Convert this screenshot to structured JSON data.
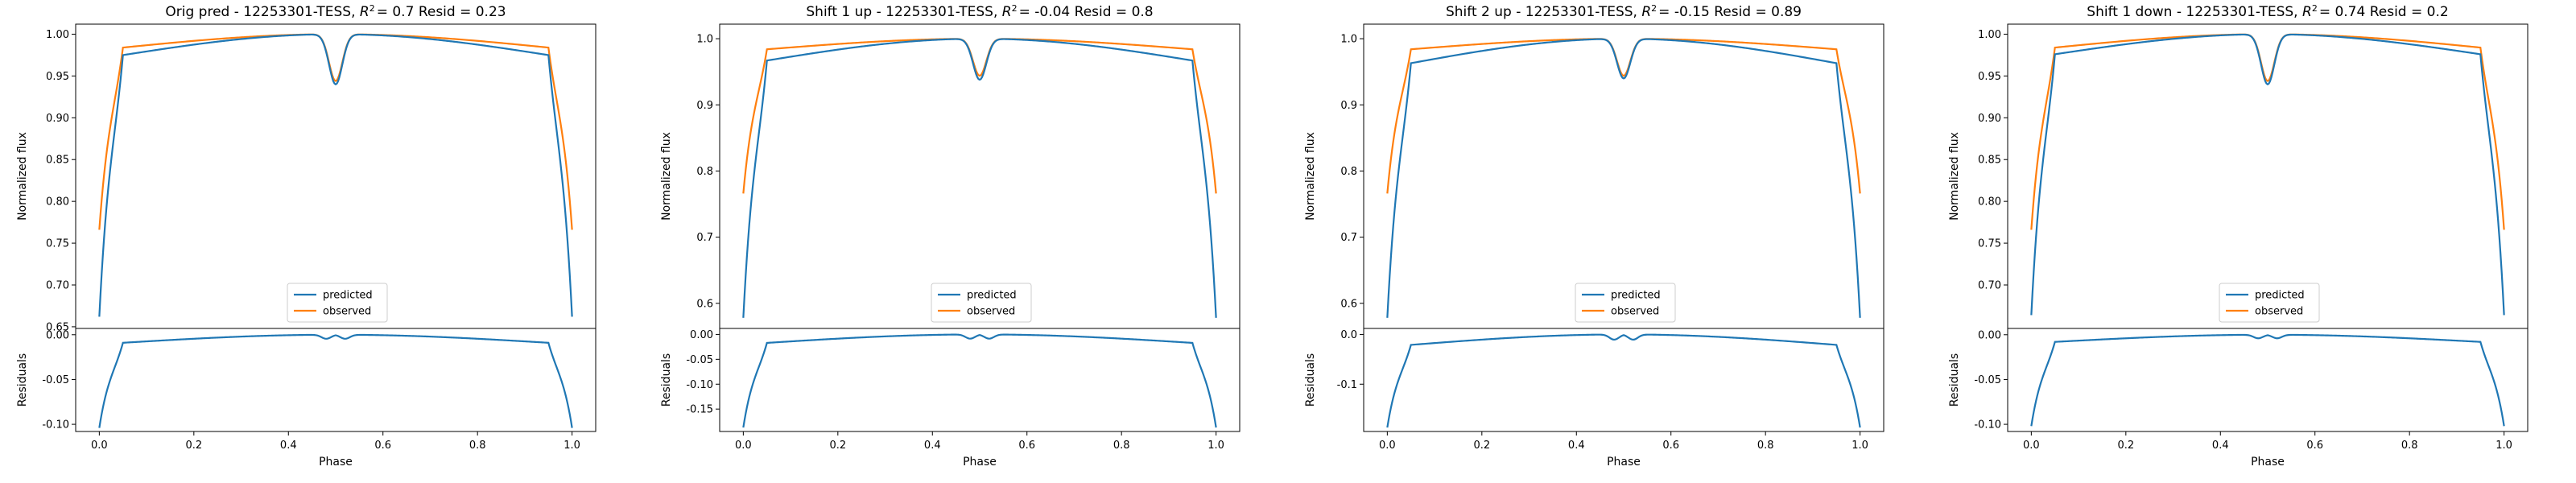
{
  "chart_data": [
    {
      "type": "line",
      "title_prefix": "Orig pred - 12253301-TESS, ",
      "title_r2": "= 0.7",
      "title_resid": "Resid = 0.23",
      "main": {
        "ylabel": "Normalized flux",
        "ylim": [
          0.648,
          1.012
        ],
        "yticks": [
          "0.65",
          "0.70",
          "0.75",
          "0.80",
          "0.85",
          "0.90",
          "0.95",
          "1.00"
        ],
        "series": [
          {
            "name": "predicted",
            "color": "#1f77b4",
            "edge": 0.662,
            "plateau": 0.975,
            "peak": 1.0,
            "dip": 0.94
          },
          {
            "name": "observed",
            "color": "#ff7f0e",
            "edge": 0.766,
            "plateau": 0.984,
            "peak": 1.0,
            "dip": 0.944
          }
        ],
        "legend_loc": "lower center"
      },
      "resid": {
        "ylabel": "Residuals",
        "ylim": [
          -0.108,
          0.007
        ],
        "yticks": [
          "0.00",
          "-0.05",
          "-0.10"
        ],
        "edge": -0.104,
        "plateau": -0.009,
        "peak": 0.0
      },
      "xlabel": "Phase",
      "xlim": [
        -0.05,
        1.05
      ],
      "xticks": [
        "0.0",
        "0.2",
        "0.4",
        "0.6",
        "0.8",
        "1.0"
      ]
    },
    {
      "type": "line",
      "title_prefix": "Shift 1 up - 12253301-TESS, ",
      "title_r2": "= -0.04",
      "title_resid": "Resid = 0.8",
      "main": {
        "ylabel": "Normalized flux",
        "ylim": [
          0.562,
          1.022
        ],
        "yticks": [
          "0.6",
          "0.7",
          "0.8",
          "0.9",
          "1.0"
        ],
        "series": [
          {
            "name": "predicted",
            "color": "#1f77b4",
            "edge": 0.578,
            "plateau": 0.967,
            "peak": 1.0,
            "dip": 0.938
          },
          {
            "name": "observed",
            "color": "#ff7f0e",
            "edge": 0.766,
            "plateau": 0.984,
            "peak": 1.0,
            "dip": 0.944
          }
        ],
        "legend_loc": "lower center"
      },
      "resid": {
        "ylabel": "Residuals",
        "ylim": [
          -0.195,
          0.012
        ],
        "yticks": [
          "0.00",
          "-0.05",
          "-0.10",
          "-0.15"
        ],
        "edge": -0.187,
        "plateau": -0.017,
        "peak": 0.0
      },
      "xlabel": "Phase",
      "xlim": [
        -0.05,
        1.05
      ],
      "xticks": [
        "0.0",
        "0.2",
        "0.4",
        "0.6",
        "0.8",
        "1.0"
      ]
    },
    {
      "type": "line",
      "title_prefix": "Shift 2 up - 12253301-TESS, ",
      "title_r2": "= -0.15",
      "title_resid": "Resid = 0.89",
      "main": {
        "ylabel": "Normalized flux",
        "ylim": [
          0.562,
          1.022
        ],
        "yticks": [
          "0.6",
          "0.7",
          "0.8",
          "0.9",
          "1.0"
        ],
        "series": [
          {
            "name": "predicted",
            "color": "#1f77b4",
            "edge": 0.578,
            "plateau": 0.963,
            "peak": 1.0,
            "dip": 0.94
          },
          {
            "name": "observed",
            "color": "#ff7f0e",
            "edge": 0.766,
            "plateau": 0.984,
            "peak": 1.0,
            "dip": 0.944
          }
        ],
        "legend_loc": "lower center"
      },
      "resid": {
        "ylabel": "Residuals",
        "ylim": [
          -0.195,
          0.012
        ],
        "yticks": [
          "0.0",
          "-0.1"
        ],
        "edge": -0.187,
        "plateau": -0.021,
        "peak": 0.0
      },
      "xlabel": "Phase",
      "xlim": [
        -0.05,
        1.05
      ],
      "xticks": [
        "0.0",
        "0.2",
        "0.4",
        "0.6",
        "0.8",
        "1.0"
      ]
    },
    {
      "type": "line",
      "title_prefix": "Shift 1 down - 12253301-TESS, ",
      "title_r2": "= 0.74",
      "title_resid": "Resid = 0.2",
      "main": {
        "ylabel": "Normalized flux",
        "ylim": [
          0.648,
          1.012
        ],
        "yticks": [
          "0.70",
          "0.75",
          "0.80",
          "0.85",
          "0.90",
          "0.95",
          "1.00"
        ],
        "series": [
          {
            "name": "predicted",
            "color": "#1f77b4",
            "edge": 0.664,
            "plateau": 0.976,
            "peak": 1.0,
            "dip": 0.94
          },
          {
            "name": "observed",
            "color": "#ff7f0e",
            "edge": 0.766,
            "plateau": 0.984,
            "peak": 1.0,
            "dip": 0.944
          }
        ],
        "legend_loc": "lower center"
      },
      "resid": {
        "ylabel": "Residuals",
        "ylim": [
          -0.108,
          0.007
        ],
        "yticks": [
          "0.00",
          "-0.05",
          "-0.10"
        ],
        "edge": -0.102,
        "plateau": -0.008,
        "peak": 0.0
      },
      "xlabel": "Phase",
      "xlim": [
        -0.05,
        1.05
      ],
      "xticks": [
        "0.0",
        "0.2",
        "0.4",
        "0.6",
        "0.8",
        "1.0"
      ]
    }
  ]
}
